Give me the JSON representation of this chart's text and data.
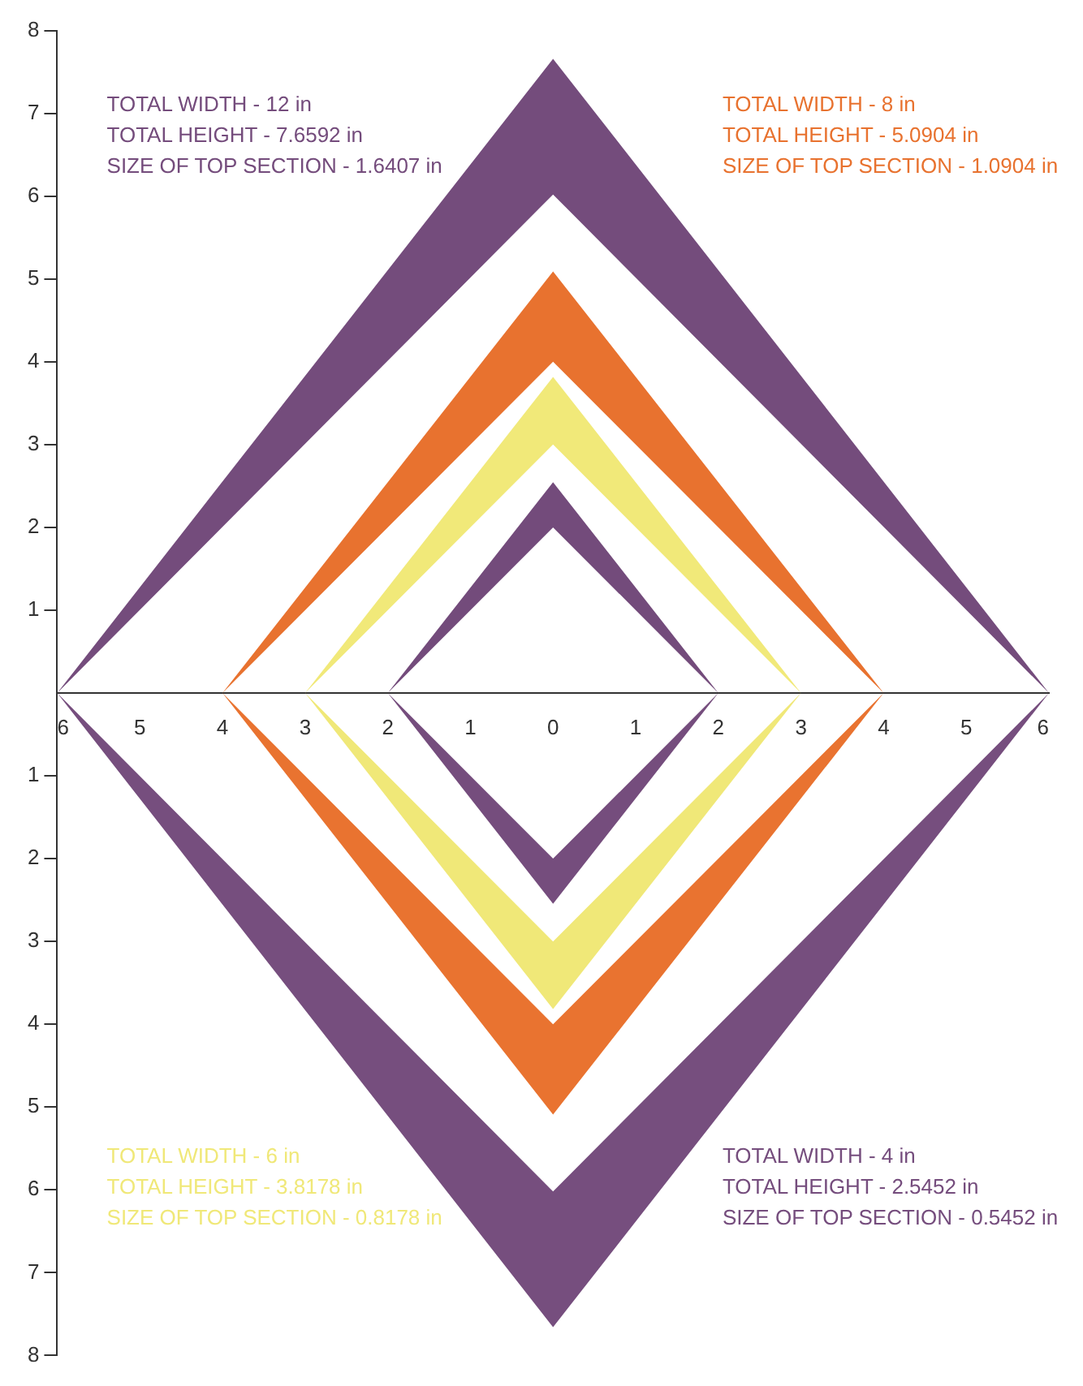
{
  "chart_data": {
    "type": "area",
    "series": [
      {
        "color": "#744c7c",
        "x": [
          -6,
          0,
          6,
          0,
          -6
        ],
        "values": [
          0,
          7.6592,
          0,
          6.02,
          0
        ]
      },
      {
        "color": "#e8722f",
        "x": [
          -4,
          0,
          4,
          0,
          -4
        ],
        "values": [
          0,
          5.0904,
          0,
          4,
          0
        ]
      },
      {
        "color": "#f0e878",
        "x": [
          -3,
          0,
          3,
          0,
          -3
        ],
        "values": [
          0,
          -3.8178,
          0,
          -3,
          0
        ]
      },
      {
        "color": "#754d7d",
        "x": [
          -2,
          0,
          2,
          0,
          -2
        ],
        "values": [
          0,
          -2.5452,
          0,
          -2,
          0
        ]
      },
      {
        "color": "#f1e979",
        "x": [
          -3,
          0,
          3,
          0,
          -3
        ],
        "values": [
          0,
          3.8178,
          0,
          3,
          0
        ]
      },
      {
        "color": "#734b7b",
        "x": [
          -2,
          0,
          2,
          0,
          -2
        ],
        "values": [
          0,
          2.5452,
          0,
          2,
          0
        ]
      },
      {
        "color": "#764e7e",
        "x": [
          -6,
          0,
          6,
          0,
          -6
        ],
        "values": [
          0,
          -7.6592,
          0,
          -6.02,
          0
        ]
      },
      {
        "color": "#e97330",
        "x": [
          -4,
          0,
          4,
          0,
          -4
        ],
        "values": [
          0,
          -5.0904,
          0,
          -4,
          0
        ]
      }
    ],
    "annotations": [
      "TOTAL WIDTH - 12 in",
      "TOTAL HEIGHT - 7.6592 in",
      "SIZE OF TOP SECTION - 1.6407 in",
      "TOTAL WIDTH - 8 in",
      "TOTAL HEIGHT - 5.0904 in",
      "SIZE OF TOP SECTION - 1.0904 in",
      "TOTAL WIDTH - 6 in",
      "TOTAL HEIGHT - 3.8178 in",
      "SIZE OF TOP SECTION - 0.8178 in",
      "TOTAL WIDTH - 4 in",
      "TOTAL HEIGHT - 2.5452 in",
      "SIZE OF TOP SECTION - 0.5452 in"
    ],
    "xlim": [
      -6,
      6
    ],
    "xticks": [
      {
        "value": -6,
        "label": "6"
      },
      {
        "value": -5,
        "label": "5"
      },
      {
        "value": -4,
        "label": "4"
      },
      {
        "value": -3,
        "label": "3"
      },
      {
        "value": -2,
        "label": "2"
      },
      {
        "value": -1,
        "label": "1"
      },
      0,
      1,
      2,
      3,
      4,
      5,
      6
    ],
    "ylim": [
      -8,
      8
    ],
    "yticks": [
      {
        "value": -8,
        "label": "8"
      },
      {
        "value": -7,
        "label": "7"
      },
      {
        "value": -6,
        "label": "6"
      },
      {
        "value": -5,
        "label": "5"
      },
      {
        "value": -4,
        "label": "4"
      },
      {
        "value": -3,
        "label": "3"
      },
      {
        "value": -2,
        "label": "2"
      },
      {
        "value": -1,
        "label": "1"
      },
      1,
      2,
      3,
      4,
      5,
      6,
      7,
      8
    ],
    "grid": false,
    "legend": false
  }
}
